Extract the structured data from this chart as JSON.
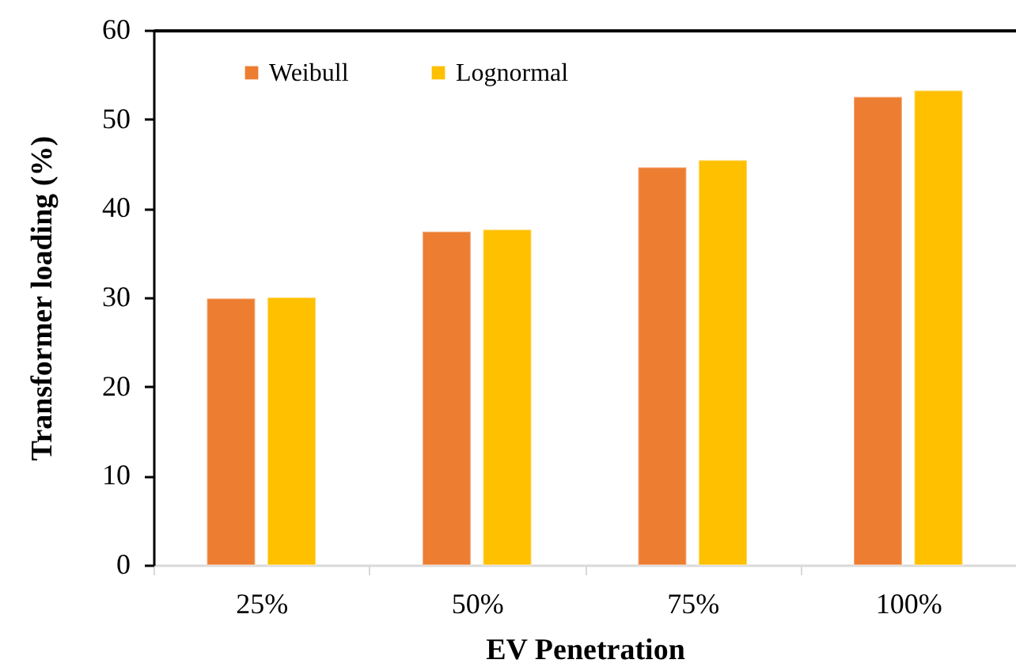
{
  "chart_data": {
    "type": "bar",
    "xlabel": "EV Penetration",
    "ylabel": "Transformer loading (%)",
    "categories": [
      "25%",
      "50%",
      "75%",
      "100%"
    ],
    "series": [
      {
        "name": "Weibull",
        "color": "#ed7d31",
        "values": [
          29.9,
          37.4,
          44.6,
          52.5
        ]
      },
      {
        "name": "Lognormal",
        "color": "#ffc000",
        "values": [
          30.0,
          37.6,
          45.4,
          53.2
        ]
      }
    ],
    "ylim": [
      0,
      60
    ],
    "yticks": [
      0,
      10,
      20,
      30,
      40,
      50,
      60
    ],
    "grid": false,
    "legend": "top left"
  }
}
